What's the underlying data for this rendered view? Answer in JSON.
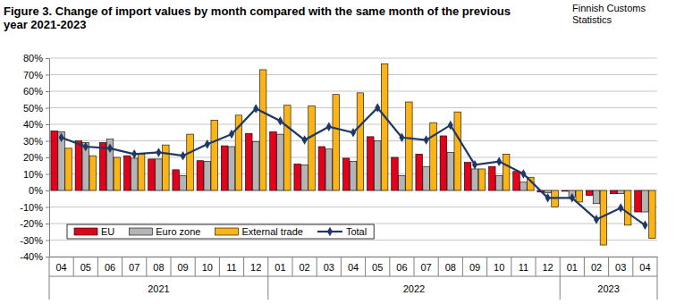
{
  "chart_data": {
    "type": "bar",
    "title": "Figure 3. Change of import values by month compared with the same month of the previous year 2021-2023",
    "source": "Finnish Customs Statistics",
    "categories": [
      "04",
      "05",
      "06",
      "07",
      "08",
      "09",
      "10",
      "11",
      "12",
      "01",
      "02",
      "03",
      "04",
      "05",
      "06",
      "07",
      "08",
      "09",
      "10",
      "11",
      "12",
      "01",
      "02",
      "03",
      "04"
    ],
    "category_years": [
      "2021",
      "2021",
      "2021",
      "2021",
      "2021",
      "2021",
      "2021",
      "2021",
      "2021",
      "2022",
      "2022",
      "2022",
      "2022",
      "2022",
      "2022",
      "2022",
      "2022",
      "2022",
      "2022",
      "2022",
      "2022",
      "2023",
      "2023",
      "2023",
      "2023"
    ],
    "series": [
      {
        "name": "EU",
        "type": "bar",
        "color": "#e2001a",
        "values": [
          36,
          30,
          29,
          21,
          19,
          12.5,
          18,
          27,
          34.5,
          35.5,
          16,
          26.5,
          19.5,
          32.5,
          20,
          22,
          33,
          17,
          14.5,
          11.5,
          -1,
          -0.5,
          -3,
          -2,
          -13
        ]
      },
      {
        "name": "Euro zone",
        "type": "bar",
        "color": "#b4b4b4",
        "values": [
          35.5,
          29,
          31,
          19.5,
          19,
          9,
          17.5,
          26.5,
          29.5,
          34,
          15.5,
          25,
          17.5,
          30,
          9,
          14.5,
          23,
          13,
          9,
          5,
          -1.5,
          -4,
          -8,
          -2,
          -13
        ]
      },
      {
        "name": "External trade",
        "type": "bar",
        "color": "#fbb417",
        "values": [
          25.5,
          21,
          20,
          22,
          27.5,
          34,
          42.5,
          45.5,
          73,
          51.5,
          51,
          58,
          59,
          76.5,
          53.5,
          41,
          47.5,
          13,
          22,
          8,
          -10,
          -7,
          -33,
          -21,
          -29
        ]
      },
      {
        "name": "Total",
        "type": "line",
        "color": "#1f3864",
        "marker": "diamond",
        "line_style": "solid",
        "values": [
          32,
          26.5,
          25.5,
          22,
          23,
          21,
          28,
          34,
          49.5,
          42,
          30.5,
          38.5,
          35,
          50,
          32,
          30.5,
          39.5,
          15.5,
          17.5,
          10,
          -4.5,
          -4.5,
          -17.5,
          -10.5,
          -21
        ]
      }
    ],
    "ylim": [
      -40,
      80
    ],
    "yticks": [
      {
        "value": -40,
        "label": "-40%"
      },
      {
        "value": -30,
        "label": "-30%"
      },
      {
        "value": -20,
        "label": "-20%"
      },
      {
        "value": -10,
        "label": "-10%"
      },
      {
        "value": 0,
        "label": "0%"
      },
      {
        "value": 10,
        "label": "10%"
      },
      {
        "value": 20,
        "label": "20%"
      },
      {
        "value": 30,
        "label": "30%"
      },
      {
        "value": 40,
        "label": "40%"
      },
      {
        "value": 50,
        "label": "50%"
      },
      {
        "value": 60,
        "label": "60%"
      },
      {
        "value": 70,
        "label": "70%"
      },
      {
        "value": 80,
        "label": "80%"
      }
    ],
    "grid": true,
    "legend": "lower left"
  }
}
